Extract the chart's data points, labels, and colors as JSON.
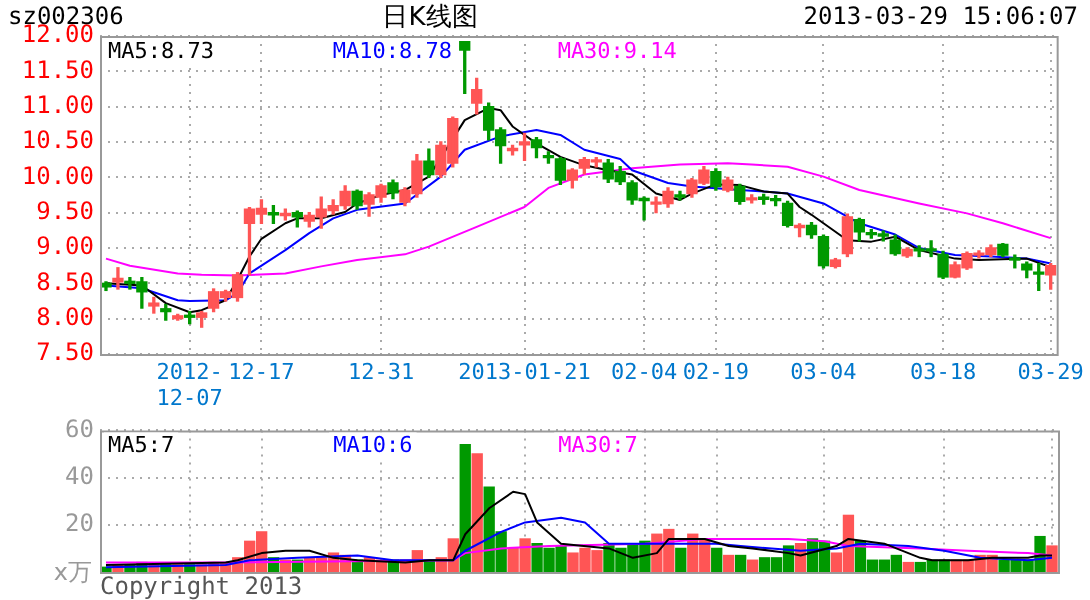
{
  "chart_data": [
    {
      "type": "candlestick",
      "title": "日K线图",
      "subtitle": "sz002306",
      "annotations": [
        "2013-03-29 15:06:07"
      ],
      "categories": [
        null,
        null,
        null,
        null,
        null,
        null,
        null,
        "2012-12-07",
        null,
        null,
        null,
        null,
        null,
        "12-17",
        null,
        null,
        null,
        null,
        null,
        null,
        null,
        null,
        null,
        "12-31",
        null,
        null,
        null,
        null,
        null,
        null,
        null,
        null,
        null,
        null,
        null,
        "2013-01-21",
        null,
        null,
        null,
        null,
        null,
        null,
        null,
        null,
        null,
        "02-04",
        null,
        null,
        null,
        null,
        null,
        "02-19",
        null,
        null,
        null,
        null,
        null,
        null,
        null,
        null,
        "03-04",
        null,
        null,
        null,
        null,
        null,
        null,
        null,
        null,
        null,
        "03-18",
        null,
        null,
        null,
        null,
        null,
        null,
        null,
        null,
        "03-29"
      ],
      "ohlc": [
        [
          8.5,
          8.52,
          8.4,
          8.45
        ],
        [
          8.52,
          8.72,
          8.42,
          8.57
        ],
        [
          8.52,
          8.58,
          8.42,
          8.5
        ],
        [
          8.52,
          8.58,
          8.15,
          8.38
        ],
        [
          8.18,
          8.3,
          8.08,
          8.22
        ],
        [
          8.14,
          8.2,
          7.98,
          8.1
        ],
        [
          8.0,
          8.06,
          7.98,
          8.04
        ],
        [
          8.04,
          8.1,
          7.93,
          8.02
        ],
        [
          8.02,
          8.1,
          7.88,
          8.08
        ],
        [
          8.15,
          8.42,
          8.1,
          8.38
        ],
        [
          8.3,
          8.4,
          8.25,
          8.38
        ],
        [
          8.3,
          8.65,
          8.25,
          8.62
        ],
        [
          9.35,
          9.57,
          8.62,
          9.55
        ],
        [
          9.48,
          9.68,
          9.35,
          9.56
        ],
        [
          9.5,
          9.6,
          9.35,
          9.47
        ],
        [
          9.46,
          9.55,
          9.4,
          9.49
        ],
        [
          9.5,
          9.52,
          9.3,
          9.44
        ],
        [
          9.38,
          9.5,
          9.3,
          9.46
        ],
        [
          9.44,
          9.72,
          9.28,
          9.55
        ],
        [
          9.53,
          9.68,
          9.48,
          9.6
        ],
        [
          9.6,
          9.88,
          9.55,
          9.8
        ],
        [
          9.8,
          9.82,
          9.55,
          9.6
        ],
        [
          9.62,
          9.78,
          9.45,
          9.75
        ],
        [
          9.72,
          9.9,
          9.65,
          9.88
        ],
        [
          9.92,
          9.96,
          9.7,
          9.78
        ],
        [
          9.65,
          9.85,
          9.6,
          9.82
        ],
        [
          9.77,
          10.32,
          9.72,
          10.23
        ],
        [
          10.23,
          10.4,
          10.0,
          10.04
        ],
        [
          10.04,
          10.5,
          10.0,
          10.45
        ],
        [
          10.2,
          10.85,
          10.15,
          10.83
        ],
        [
          11.92,
          11.92,
          11.19,
          11.8
        ],
        [
          11.05,
          11.4,
          10.9,
          11.24
        ],
        [
          11.0,
          11.05,
          10.53,
          10.67
        ],
        [
          10.67,
          10.7,
          10.2,
          10.45
        ],
        [
          10.38,
          10.45,
          10.32,
          10.4
        ],
        [
          10.46,
          10.62,
          10.24,
          10.5
        ],
        [
          10.53,
          10.56,
          10.28,
          10.42
        ],
        [
          10.3,
          10.36,
          10.2,
          10.28
        ],
        [
          10.26,
          10.28,
          9.9,
          9.96
        ],
        [
          9.96,
          10.12,
          9.85,
          10.1
        ],
        [
          10.13,
          10.28,
          10.05,
          10.25
        ],
        [
          10.22,
          10.28,
          10.15,
          10.24
        ],
        [
          10.2,
          10.25,
          9.93,
          9.98
        ],
        [
          10.08,
          10.15,
          9.9,
          9.94
        ],
        [
          9.92,
          9.95,
          9.62,
          9.68
        ],
        [
          9.7,
          9.72,
          9.4,
          9.67
        ],
        [
          9.62,
          9.72,
          9.5,
          9.64
        ],
        [
          9.63,
          9.85,
          9.58,
          9.8
        ],
        [
          9.75,
          9.8,
          9.68,
          9.72
        ],
        [
          9.77,
          9.98,
          9.72,
          9.96
        ],
        [
          9.92,
          10.15,
          9.9,
          10.1
        ],
        [
          10.08,
          10.12,
          9.82,
          9.87
        ],
        [
          9.82,
          10.0,
          9.8,
          9.96
        ],
        [
          9.87,
          9.9,
          9.62,
          9.66
        ],
        [
          9.68,
          9.75,
          9.64,
          9.7
        ],
        [
          9.71,
          9.76,
          9.62,
          9.69
        ],
        [
          9.69,
          9.74,
          9.6,
          9.67
        ],
        [
          9.63,
          9.66,
          9.3,
          9.32
        ],
        [
          9.29,
          9.34,
          9.16,
          9.31
        ],
        [
          9.32,
          9.36,
          9.14,
          9.19
        ],
        [
          9.16,
          9.18,
          8.72,
          8.75
        ],
        [
          8.74,
          8.85,
          8.72,
          8.83
        ],
        [
          8.92,
          9.48,
          8.88,
          9.44
        ],
        [
          9.4,
          9.42,
          9.1,
          9.23
        ],
        [
          9.2,
          9.26,
          9.14,
          9.19
        ],
        [
          9.18,
          9.24,
          9.1,
          9.17
        ],
        [
          9.11,
          9.18,
          8.9,
          8.92
        ],
        [
          8.89,
          9.0,
          8.87,
          8.98
        ],
        [
          8.98,
          9.03,
          8.88,
          8.96
        ],
        [
          8.98,
          9.1,
          8.88,
          8.96
        ],
        [
          8.91,
          8.95,
          8.57,
          8.59
        ],
        [
          8.59,
          8.8,
          8.58,
          8.76
        ],
        [
          8.72,
          8.94,
          8.7,
          8.92
        ],
        [
          8.9,
          8.96,
          8.86,
          8.91
        ],
        [
          8.91,
          9.04,
          8.88,
          9.0
        ],
        [
          9.05,
          9.06,
          8.88,
          8.9
        ],
        [
          8.84,
          8.9,
          8.72,
          8.83
        ],
        [
          8.77,
          8.8,
          8.58,
          8.69
        ],
        [
          8.65,
          8.78,
          8.4,
          8.63
        ],
        [
          8.62,
          8.78,
          8.42,
          8.75
        ]
      ],
      "colors": [
        "#009900",
        "#ff5555",
        "#009900",
        "#009900",
        "#ff5555",
        "#009900",
        "#ff5555",
        "#009900",
        "#ff5555",
        "#ff5555",
        "#ff5555",
        "#ff5555",
        "#ff5555",
        "#ff5555",
        "#009900",
        "#ff5555",
        "#009900",
        "#ff5555",
        "#ff5555",
        "#ff5555",
        "#ff5555",
        "#009900",
        "#ff5555",
        "#ff5555",
        "#009900",
        "#ff5555",
        "#ff5555",
        "#009900",
        "#ff5555",
        "#ff5555",
        "#009900",
        "#ff5555",
        "#009900",
        "#009900",
        "#ff5555",
        "#ff5555",
        "#009900",
        "#009900",
        "#009900",
        "#ff5555",
        "#ff5555",
        "#ff5555",
        "#009900",
        "#009900",
        "#009900",
        "#009900",
        "#ff5555",
        "#ff5555",
        "#009900",
        "#ff5555",
        "#ff5555",
        "#009900",
        "#ff5555",
        "#009900",
        "#ff5555",
        "#009900",
        "#009900",
        "#009900",
        "#ff5555",
        "#009900",
        "#009900",
        "#ff5555",
        "#ff5555",
        "#009900",
        "#009900",
        "#009900",
        "#009900",
        "#ff5555",
        "#009900",
        "#009900",
        "#009900",
        "#ff5555",
        "#ff5555",
        "#ff5555",
        "#ff5555",
        "#009900",
        "#009900",
        "#009900",
        "#009900",
        "#ff5555"
      ],
      "series": [
        {
          "name": "MA5:8.73",
          "type": "line",
          "color": "#000000",
          "values": [
            8.5,
            null,
            null,
            8.47,
            null,
            8.22,
            null,
            8.09,
            8.12,
            null,
            8.26,
            8.55,
            8.88,
            9.13,
            null,
            9.35,
            9.42,
            null,
            9.42,
            null,
            9.51,
            9.63,
            null,
            9.75,
            null,
            9.82,
            null,
            10.01,
            null,
            null,
            10.81,
            null,
            10.98,
            10.95,
            10.72,
            null,
            10.48,
            null,
            10.29,
            null,
            10.17,
            null,
            10.1,
            null,
            10.04,
            null,
            9.77,
            null,
            9.68,
            9.77,
            null,
            9.9,
            null,
            9.89,
            null,
            9.8,
            null,
            9.77,
            9.58,
            9.47,
            null,
            null,
            9.11,
            null,
            9.09,
            null,
            9.16,
            null,
            8.97,
            null,
            null,
            8.85,
            null,
            8.83,
            null,
            null,
            null,
            8.85,
            null,
            8.73
          ]
        },
        {
          "name": "MA10:8.78",
          "type": "line",
          "color": "#0000ff",
          "values": [
            8.47,
            null,
            null,
            8.43,
            null,
            null,
            8.26,
            8.25,
            null,
            null,
            8.26,
            8.36,
            8.64,
            null,
            null,
            8.97,
            null,
            9.21,
            null,
            9.42,
            null,
            9.54,
            null,
            null,
            null,
            9.63,
            null,
            null,
            10.01,
            null,
            10.39,
            null,
            null,
            10.58,
            null,
            null,
            10.67,
            null,
            10.6,
            null,
            10.39,
            null,
            null,
            10.26,
            10.1,
            null,
            null,
            9.92,
            null,
            9.87,
            null,
            null,
            null,
            9.82,
            null,
            9.8,
            null,
            9.77,
            null,
            null,
            9.63,
            null,
            null,
            9.35,
            null,
            null,
            9.19,
            null,
            9.0,
            null,
            null,
            8.9,
            null,
            null,
            8.88,
            null,
            null,
            8.85,
            null,
            8.78
          ]
        },
        {
          "name": "MA30:9.14",
          "type": "line",
          "color": "#ff00ff",
          "values": [
            8.85,
            null,
            8.75,
            null,
            null,
            null,
            8.64,
            null,
            8.62,
            null,
            null,
            8.61,
            null,
            null,
            null,
            8.64,
            null,
            null,
            8.74,
            null,
            null,
            8.83,
            null,
            null,
            null,
            8.91,
            null,
            9.02,
            null,
            null,
            null,
            9.3,
            null,
            null,
            null,
            9.58,
            null,
            9.85,
            null,
            null,
            10.04,
            null,
            null,
            null,
            10.13,
            null,
            null,
            null,
            10.18,
            null,
            null,
            null,
            10.2,
            null,
            10.18,
            null,
            null,
            10.15,
            null,
            null,
            10.01,
            null,
            null,
            9.82,
            null,
            null,
            null,
            null,
            9.63,
            null,
            null,
            null,
            9.49,
            null,
            null,
            9.35,
            null,
            null,
            null,
            9.14
          ]
        }
      ],
      "ylim": [
        7.5,
        12
      ],
      "yticks": [
        {
          "value": 7.5,
          "label": "7.50"
        },
        {
          "value": 8,
          "label": "8.00"
        },
        {
          "value": 8.5,
          "label": "8.50"
        },
        {
          "value": 9,
          "label": "9.00"
        },
        {
          "value": 9.5,
          "label": "9.50"
        },
        {
          "value": 10,
          "label": "10.00"
        },
        {
          "value": 10.5,
          "label": "10.50"
        },
        {
          "value": 11,
          "label": "11.00"
        },
        {
          "value": 11.5,
          "label": "11.50"
        },
        {
          "value": 12,
          "label": "12.00"
        }
      ],
      "grid": true,
      "legend": "top"
    },
    {
      "type": "bar",
      "ylabel": "x万",
      "annotations": [
        "Copyright 2013"
      ],
      "categories": [
        null,
        null,
        null,
        null,
        null,
        null,
        null,
        "2012-12-07",
        null,
        null,
        null,
        null,
        null,
        "12-17",
        null,
        null,
        null,
        null,
        null,
        null,
        null,
        null,
        null,
        "12-31",
        null,
        null,
        null,
        null,
        null,
        null,
        null,
        null,
        null,
        null,
        null,
        "2013-01-21",
        null,
        null,
        null,
        null,
        null,
        null,
        null,
        null,
        null,
        "02-04",
        null,
        null,
        null,
        null,
        null,
        "02-19",
        null,
        null,
        null,
        null,
        null,
        null,
        null,
        null,
        "03-04",
        null,
        null,
        null,
        null,
        null,
        null,
        null,
        null,
        null,
        "03-18",
        null,
        null,
        null,
        null,
        null,
        null,
        null,
        null,
        "03-29"
      ],
      "values": [
        2,
        3,
        3,
        4,
        3,
        3,
        3,
        3,
        3,
        4,
        4,
        6,
        13,
        17,
        6,
        5,
        5,
        6,
        6,
        8,
        7,
        5,
        6,
        5,
        5,
        5,
        9,
        5,
        6,
        14,
        54,
        50,
        36,
        17,
        10,
        14,
        12,
        10,
        11,
        8,
        10,
        9,
        12,
        10,
        12,
        13,
        16,
        18,
        10,
        16,
        14,
        10,
        7,
        7,
        5,
        6,
        6,
        11,
        12,
        14,
        13,
        8,
        24,
        13,
        5,
        5,
        7,
        4,
        4,
        5,
        5,
        5,
        5,
        7,
        7,
        5,
        5,
        5,
        15,
        11
      ],
      "colors": [
        "#009900",
        "#ff5555",
        "#009900",
        "#009900",
        "#ff5555",
        "#009900",
        "#ff5555",
        "#009900",
        "#ff5555",
        "#ff5555",
        "#ff5555",
        "#ff5555",
        "#ff5555",
        "#ff5555",
        "#009900",
        "#ff5555",
        "#009900",
        "#ff5555",
        "#ff5555",
        "#ff5555",
        "#ff5555",
        "#009900",
        "#ff5555",
        "#ff5555",
        "#009900",
        "#ff5555",
        "#ff5555",
        "#009900",
        "#ff5555",
        "#ff5555",
        "#009900",
        "#ff5555",
        "#009900",
        "#009900",
        "#ff5555",
        "#ff5555",
        "#009900",
        "#009900",
        "#009900",
        "#ff5555",
        "#ff5555",
        "#ff5555",
        "#009900",
        "#009900",
        "#009900",
        "#009900",
        "#ff5555",
        "#ff5555",
        "#009900",
        "#ff5555",
        "#ff5555",
        "#009900",
        "#ff5555",
        "#009900",
        "#ff5555",
        "#009900",
        "#009900",
        "#009900",
        "#ff5555",
        "#009900",
        "#009900",
        "#ff5555",
        "#ff5555",
        "#009900",
        "#009900",
        "#009900",
        "#009900",
        "#ff5555",
        "#009900",
        "#009900",
        "#009900",
        "#ff5555",
        "#ff5555",
        "#ff5555",
        "#ff5555",
        "#009900",
        "#009900",
        "#009900",
        "#009900",
        "#ff5555"
      ],
      "series": [
        {
          "name": "MA5:7",
          "type": "line",
          "color": "#000000",
          "values": [
            3,
            null,
            null,
            null,
            null,
            null,
            null,
            null,
            null,
            null,
            4,
            5,
            null,
            8,
            null,
            9,
            null,
            9,
            null,
            6,
            null,
            5,
            null,
            null,
            null,
            4,
            null,
            5,
            null,
            5,
            16,
            null,
            27,
            null,
            34,
            33,
            21,
            null,
            12,
            null,
            null,
            null,
            10,
            null,
            6,
            null,
            8,
            14,
            null,
            null,
            14,
            null,
            11,
            null,
            10,
            null,
            null,
            8,
            7,
            null,
            null,
            11,
            14,
            null,
            null,
            12,
            null,
            null,
            6,
            5,
            null,
            null,
            5,
            null,
            6,
            null,
            null,
            6,
            7,
            7
          ]
        },
        {
          "name": "MA10:6",
          "type": "line",
          "color": "#0000ff",
          "values": [
            2,
            null,
            null,
            null,
            null,
            null,
            null,
            null,
            null,
            null,
            3,
            null,
            5,
            null,
            null,
            null,
            6,
            null,
            null,
            null,
            null,
            7,
            null,
            null,
            5,
            null,
            null,
            null,
            null,
            5,
            9,
            null,
            null,
            17,
            null,
            21,
            null,
            null,
            23,
            null,
            21,
            null,
            12,
            null,
            null,
            12,
            null,
            null,
            null,
            null,
            null,
            12,
            null,
            11,
            null,
            null,
            null,
            null,
            9,
            null,
            null,
            10,
            null,
            12,
            null,
            null,
            null,
            11,
            null,
            null,
            9,
            null,
            null,
            6,
            null,
            null,
            null,
            5,
            null,
            6
          ]
        },
        {
          "name": "MA30:7",
          "type": "line",
          "color": "#ff00ff",
          "values": [
            4,
            null,
            null,
            null,
            null,
            null,
            null,
            null,
            null,
            null,
            4,
            null,
            null,
            null,
            null,
            null,
            null,
            null,
            null,
            null,
            null,
            null,
            null,
            null,
            null,
            null,
            null,
            null,
            null,
            5,
            8,
            null,
            null,
            10,
            null,
            null,
            null,
            11,
            null,
            null,
            null,
            null,
            null,
            null,
            null,
            12,
            null,
            null,
            null,
            null,
            14,
            null,
            null,
            null,
            null,
            null,
            null,
            14,
            null,
            null,
            13,
            null,
            11,
            null,
            null,
            null,
            null,
            null,
            10,
            null,
            null,
            null,
            9,
            null,
            null,
            null,
            null,
            8,
            null,
            7
          ]
        }
      ],
      "tick_labels": "y",
      "ylim": [
        0,
        60
      ],
      "yticks": [
        20,
        40,
        60
      ],
      "grid": true,
      "legend": "top"
    }
  ]
}
